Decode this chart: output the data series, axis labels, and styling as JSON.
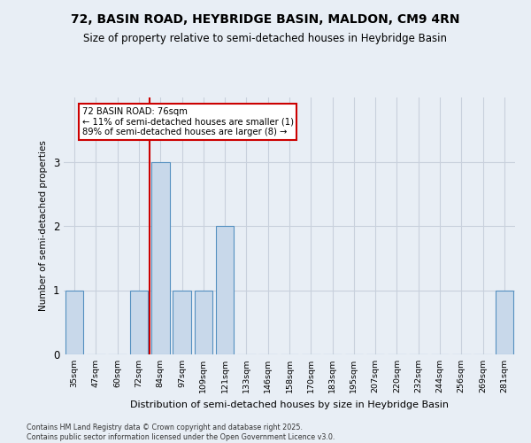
{
  "title": "72, BASIN ROAD, HEYBRIDGE BASIN, MALDON, CM9 4RN",
  "subtitle": "Size of property relative to semi-detached houses in Heybridge Basin",
  "xlabel": "Distribution of semi-detached houses by size in Heybridge Basin",
  "ylabel": "Number of semi-detached properties",
  "footnote1": "Contains HM Land Registry data © Crown copyright and database right 2025.",
  "footnote2": "Contains public sector information licensed under the Open Government Licence v3.0.",
  "categories": [
    "35sqm",
    "47sqm",
    "60sqm",
    "72sqm",
    "84sqm",
    "97sqm",
    "109sqm",
    "121sqm",
    "133sqm",
    "146sqm",
    "158sqm",
    "170sqm",
    "183sqm",
    "195sqm",
    "207sqm",
    "220sqm",
    "232sqm",
    "244sqm",
    "256sqm",
    "269sqm",
    "281sqm"
  ],
  "values": [
    1,
    0,
    0,
    1,
    3,
    1,
    1,
    2,
    0,
    0,
    0,
    0,
    0,
    0,
    0,
    0,
    0,
    0,
    0,
    0,
    1
  ],
  "bar_color": "#c8d8ea",
  "bar_edge_color": "#5590c0",
  "grid_color": "#c8d0dc",
  "background_color": "#e8eef5",
  "red_line_color": "#cc0000",
  "annotation_title": "72 BASIN ROAD: 76sqm",
  "annotation_line1": "← 11% of semi-detached houses are smaller (1)",
  "annotation_line2": "89% of semi-detached houses are larger (8) →",
  "ylim": [
    0,
    4
  ],
  "yticks": [
    0,
    1,
    2,
    3
  ],
  "title_fontsize": 10,
  "subtitle_fontsize": 8.5,
  "red_line_index": 3.5
}
